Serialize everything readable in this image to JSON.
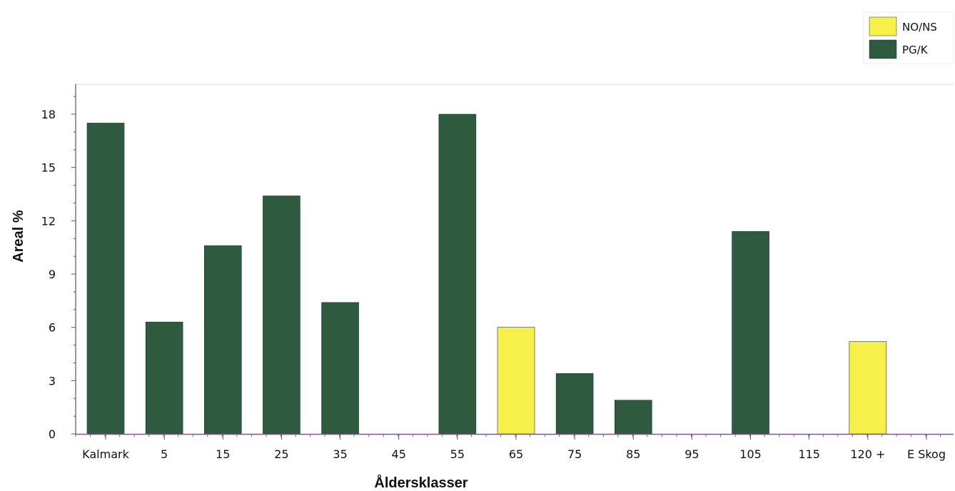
{
  "chart_data": {
    "type": "bar",
    "categories": [
      "Kalmark",
      "5",
      "15",
      "25",
      "35",
      "45",
      "55",
      "65",
      "75",
      "85",
      "95",
      "105",
      "115",
      "120 +",
      "E Skog"
    ],
    "series": [
      {
        "name": "NO/NS",
        "color": "#f5f04a",
        "values": [
          0,
          0,
          0,
          0,
          0,
          0,
          0,
          6.0,
          0,
          0,
          0,
          0,
          0,
          5.2,
          0
        ]
      },
      {
        "name": "PG/K",
        "color": "#2e5a40",
        "values": [
          17.5,
          6.3,
          10.6,
          13.4,
          7.4,
          0,
          18.0,
          0,
          3.4,
          1.9,
          0,
          11.4,
          0,
          0,
          0
        ]
      }
    ],
    "xlabel": "Åldersklasser",
    "ylabel": "Areal %",
    "yticks": [
      "0",
      "3",
      "6",
      "9",
      "12",
      "15",
      "18"
    ],
    "ylim": [
      0,
      19.8
    ],
    "grid": false,
    "legend_position": "top-right"
  }
}
